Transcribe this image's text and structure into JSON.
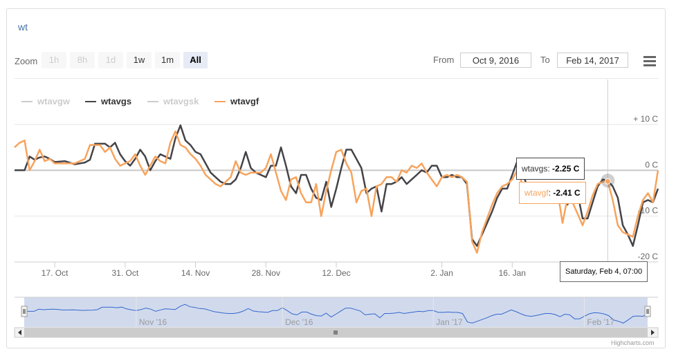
{
  "title": "wt",
  "range_selector": {
    "zoom_label": "Zoom",
    "buttons": [
      {
        "label": "1h",
        "state": "disabled"
      },
      {
        "label": "8h",
        "state": "disabled"
      },
      {
        "label": "1d",
        "state": "disabled"
      },
      {
        "label": "1w",
        "state": "normal"
      },
      {
        "label": "1m",
        "state": "normal"
      },
      {
        "label": "All",
        "state": "active"
      }
    ],
    "from_label": "From",
    "from_value": "Oct 9, 2016",
    "to_label": "To",
    "to_value": "Feb 14, 2017"
  },
  "menu_icon": "hamburger-menu-icon",
  "legend": [
    {
      "name": "wtavgw",
      "color": "#cccccc",
      "visible": false
    },
    {
      "name": "wtavgs",
      "color": "#434348",
      "visible": true
    },
    {
      "name": "wtavgsk",
      "color": "#cccccc",
      "visible": false
    },
    {
      "name": "wtavgf",
      "color": "#f7a35c",
      "visible": true
    }
  ],
  "tooltip": {
    "line1_name": "wtavgs",
    "line1_value": "-2.25 C",
    "line2_name": "wtavgf",
    "line2_value": "-2.41 C",
    "date": "Saturday, Feb 4, 07:00"
  },
  "navigator": {
    "labels": [
      "Nov '16",
      "Dec '16",
      "Jan '17",
      "Feb '17"
    ]
  },
  "credits": "Highcharts.com",
  "chart_data": {
    "type": "line",
    "x_start": "2016-10-09",
    "x_end": "2017-02-14",
    "x_ticks": [
      "17. Oct",
      "31. Oct",
      "14. Nov",
      "28. Nov",
      "12. Dec",
      "2. Jan",
      "16. Jan",
      "Feb"
    ],
    "y_ticks": [
      "+ 10 C",
      "0 C",
      "-10 C",
      "-20 C"
    ],
    "ylim": [
      -20,
      10
    ],
    "grid": true,
    "legend_position": "top-left",
    "series": [
      {
        "name": "wtavgs",
        "color": "#434348",
        "points": [
          [
            "2016-10-09",
            0.0
          ],
          [
            "2016-10-11",
            0.0
          ],
          [
            "2016-10-12",
            3.0
          ],
          [
            "2016-10-13",
            2.3
          ],
          [
            "2016-10-14",
            2.8
          ],
          [
            "2016-10-15",
            3.0
          ],
          [
            "2016-10-16",
            2.5
          ],
          [
            "2016-10-17",
            1.8
          ],
          [
            "2016-10-19",
            2.0
          ],
          [
            "2016-10-21",
            1.3
          ],
          [
            "2016-10-23",
            1.7
          ],
          [
            "2016-10-24",
            2.3
          ],
          [
            "2016-10-25",
            5.8
          ],
          [
            "2016-10-27",
            5.8
          ],
          [
            "2016-10-28",
            5.0
          ],
          [
            "2016-10-29",
            6.0
          ],
          [
            "2016-10-30",
            3.5
          ],
          [
            "2016-10-31",
            2.0
          ],
          [
            "2016-11-01",
            1.0
          ],
          [
            "2016-11-02",
            2.5
          ],
          [
            "2016-11-03",
            4.5
          ],
          [
            "2016-11-04",
            3.0
          ],
          [
            "2016-11-05",
            0.0
          ],
          [
            "2016-11-06",
            2.0
          ],
          [
            "2016-11-07",
            3.5
          ],
          [
            "2016-11-09",
            2.5
          ],
          [
            "2016-11-10",
            7.0
          ],
          [
            "2016-11-11",
            9.8
          ],
          [
            "2016-11-12",
            6.5
          ],
          [
            "2016-11-13",
            5.5
          ],
          [
            "2016-11-14",
            4.0
          ],
          [
            "2016-11-15",
            3.5
          ],
          [
            "2016-11-16",
            1.5
          ],
          [
            "2016-11-17",
            -0.5
          ],
          [
            "2016-11-18",
            -1.5
          ],
          [
            "2016-11-19",
            -2.5
          ],
          [
            "2016-11-20",
            -3.0
          ],
          [
            "2016-11-21",
            -3.0
          ],
          [
            "2016-11-22",
            -2.0
          ],
          [
            "2016-11-23",
            0.5
          ],
          [
            "2016-11-24",
            4.0
          ],
          [
            "2016-11-25",
            0.5
          ],
          [
            "2016-11-26",
            -0.5
          ],
          [
            "2016-11-27",
            -1.0
          ],
          [
            "2016-11-28",
            -1.5
          ],
          [
            "2016-11-29",
            1.0
          ],
          [
            "2016-11-30",
            1.0
          ],
          [
            "2016-12-01",
            5.0
          ],
          [
            "2016-12-02",
            1.0
          ],
          [
            "2016-12-03",
            -3.5
          ],
          [
            "2016-12-04",
            -5.0
          ],
          [
            "2016-12-05",
            -1.0
          ],
          [
            "2016-12-06",
            -1.0
          ],
          [
            "2016-12-07",
            -4.0
          ],
          [
            "2016-12-08",
            -6.0
          ],
          [
            "2016-12-09",
            -6.5
          ],
          [
            "2016-12-10",
            -2.5
          ],
          [
            "2016-12-11",
            -8.0
          ],
          [
            "2016-12-12",
            -4.0
          ],
          [
            "2016-12-13",
            0.5
          ],
          [
            "2016-12-14",
            4.5
          ],
          [
            "2016-12-15",
            4.5
          ],
          [
            "2016-12-16",
            2.5
          ],
          [
            "2016-12-17",
            0.5
          ],
          [
            "2016-12-18",
            -5.0
          ],
          [
            "2016-12-19",
            -4.0
          ],
          [
            "2016-12-20",
            -3.5
          ],
          [
            "2016-12-21",
            -9.0
          ],
          [
            "2016-12-22",
            -3.0
          ],
          [
            "2016-12-23",
            -3.0
          ],
          [
            "2016-12-24",
            -2.5
          ],
          [
            "2016-12-25",
            -1.5
          ],
          [
            "2016-12-26",
            -3.0
          ],
          [
            "2016-12-27",
            -2.0
          ],
          [
            "2016-12-28",
            -1.0
          ],
          [
            "2016-12-29",
            0.0
          ],
          [
            "2016-12-30",
            -0.5
          ],
          [
            "2016-12-31",
            1.0
          ],
          [
            "2017-01-01",
            1.0
          ],
          [
            "2017-01-02",
            -1.5
          ],
          [
            "2017-01-03",
            -1.5
          ],
          [
            "2017-01-04",
            -1.0
          ],
          [
            "2017-01-05",
            -1.5
          ],
          [
            "2017-01-06",
            -1.5
          ],
          [
            "2017-01-07",
            -3.0
          ],
          [
            "2017-01-08",
            -15.0
          ],
          [
            "2017-01-09",
            -16.5
          ],
          [
            "2017-01-10",
            -14.0
          ],
          [
            "2017-01-11",
            -11.5
          ],
          [
            "2017-01-12",
            -9.0
          ],
          [
            "2017-01-13",
            -6.0
          ],
          [
            "2017-01-14",
            -4.0
          ],
          [
            "2017-01-15",
            -4.0
          ],
          [
            "2017-01-16",
            -1.0
          ],
          [
            "2017-01-17",
            2.0
          ],
          [
            "2017-01-18",
            -0.5
          ],
          [
            "2017-01-19",
            -3.5
          ],
          [
            "2017-01-20",
            -6.0
          ],
          [
            "2017-01-21",
            -7.0
          ],
          [
            "2017-01-22",
            -6.0
          ],
          [
            "2017-01-23",
            -4.5
          ],
          [
            "2017-01-24",
            -3.0
          ],
          [
            "2017-01-25",
            -3.0
          ],
          [
            "2017-01-26",
            -4.5
          ],
          [
            "2017-01-27",
            -7.5
          ],
          [
            "2017-01-28",
            -4.0
          ],
          [
            "2017-01-29",
            -5.0
          ],
          [
            "2017-01-30",
            -10.5
          ],
          [
            "2017-01-31",
            -10.5
          ],
          [
            "2017-02-01",
            -7.0
          ],
          [
            "2017-02-02",
            -3.5
          ],
          [
            "2017-02-03",
            -2.0
          ],
          [
            "2017-02-04",
            -2.25
          ],
          [
            "2017-02-05",
            -3.5
          ],
          [
            "2017-02-06",
            -6.0
          ],
          [
            "2017-02-07",
            -12.0
          ],
          [
            "2017-02-08",
            -14.0
          ],
          [
            "2017-02-09",
            -16.5
          ],
          [
            "2017-02-10",
            -12.0
          ],
          [
            "2017-02-11",
            -7.0
          ],
          [
            "2017-02-12",
            -6.5
          ],
          [
            "2017-02-13",
            -7.0
          ],
          [
            "2017-02-14",
            -4.0
          ]
        ]
      },
      {
        "name": "wtavgf",
        "color": "#f7a35c",
        "points": [
          [
            "2016-10-09",
            5.0
          ],
          [
            "2016-10-10",
            6.0
          ],
          [
            "2016-10-11",
            6.5
          ],
          [
            "2016-10-12",
            0.0
          ],
          [
            "2016-10-13",
            2.0
          ],
          [
            "2016-10-14",
            4.5
          ],
          [
            "2016-10-15",
            2.0
          ],
          [
            "2016-10-16",
            2.5
          ],
          [
            "2016-10-17",
            1.5
          ],
          [
            "2016-10-19",
            1.5
          ],
          [
            "2016-10-21",
            1.5
          ],
          [
            "2016-10-23",
            2.5
          ],
          [
            "2016-10-24",
            5.5
          ],
          [
            "2016-10-26",
            5.5
          ],
          [
            "2016-10-27",
            4.0
          ],
          [
            "2016-10-28",
            5.0
          ],
          [
            "2016-10-29",
            2.5
          ],
          [
            "2016-10-30",
            1.0
          ],
          [
            "2016-10-31",
            1.5
          ],
          [
            "2016-11-01",
            2.0
          ],
          [
            "2016-11-02",
            3.5
          ],
          [
            "2016-11-03",
            1.0
          ],
          [
            "2016-11-04",
            -1.0
          ],
          [
            "2016-11-05",
            1.0
          ],
          [
            "2016-11-06",
            3.0
          ],
          [
            "2016-11-07",
            2.0
          ],
          [
            "2016-11-08",
            1.5
          ],
          [
            "2016-11-09",
            6.0
          ],
          [
            "2016-11-10",
            8.5
          ],
          [
            "2016-11-11",
            5.5
          ],
          [
            "2016-11-12",
            5.0
          ],
          [
            "2016-11-13",
            3.5
          ],
          [
            "2016-11-14",
            2.5
          ],
          [
            "2016-11-15",
            1.0
          ],
          [
            "2016-11-16",
            -1.0
          ],
          [
            "2016-11-17",
            -2.0
          ],
          [
            "2016-11-18",
            -3.0
          ],
          [
            "2016-11-19",
            -3.5
          ],
          [
            "2016-11-20",
            -2.5
          ],
          [
            "2016-11-21",
            -1.5
          ],
          [
            "2016-11-22",
            2.0
          ],
          [
            "2016-11-23",
            -0.5
          ],
          [
            "2016-11-24",
            -1.0
          ],
          [
            "2016-11-25",
            -0.5
          ],
          [
            "2016-11-26",
            -0.5
          ],
          [
            "2016-11-27",
            -0.5
          ],
          [
            "2016-11-28",
            0.5
          ],
          [
            "2016-11-29",
            3.5
          ],
          [
            "2016-11-30",
            -0.5
          ],
          [
            "2016-12-01",
            -4.5
          ],
          [
            "2016-12-02",
            -6.5
          ],
          [
            "2016-12-03",
            -2.0
          ],
          [
            "2016-12-04",
            -1.5
          ],
          [
            "2016-12-05",
            -5.0
          ],
          [
            "2016-12-06",
            -7.0
          ],
          [
            "2016-12-07",
            -7.0
          ],
          [
            "2016-12-08",
            -3.0
          ],
          [
            "2016-12-09",
            -10.0
          ],
          [
            "2016-12-10",
            -4.5
          ],
          [
            "2016-12-11",
            0.0
          ],
          [
            "2016-12-12",
            4.0
          ],
          [
            "2016-12-13",
            4.5
          ],
          [
            "2016-12-14",
            1.5
          ],
          [
            "2016-12-15",
            -0.5
          ],
          [
            "2016-12-16",
            -7.0
          ],
          [
            "2016-12-17",
            -4.5
          ],
          [
            "2016-12-18",
            -4.0
          ],
          [
            "2016-12-19",
            -10.0
          ],
          [
            "2016-12-20",
            -3.5
          ],
          [
            "2016-12-21",
            -3.0
          ],
          [
            "2016-12-22",
            -1.5
          ],
          [
            "2016-12-23",
            -1.5
          ],
          [
            "2016-12-24",
            -2.5
          ],
          [
            "2016-12-25",
            0.0
          ],
          [
            "2016-12-26",
            -0.5
          ],
          [
            "2016-12-27",
            1.0
          ],
          [
            "2016-12-28",
            0.5
          ],
          [
            "2016-12-29",
            1.5
          ],
          [
            "2016-12-30",
            -0.5
          ],
          [
            "2016-12-31",
            -2.0
          ],
          [
            "2017-01-01",
            -3.5
          ],
          [
            "2017-01-02",
            -1.5
          ],
          [
            "2017-01-03",
            -1.0
          ],
          [
            "2017-01-04",
            -1.5
          ],
          [
            "2017-01-05",
            -1.0
          ],
          [
            "2017-01-06",
            -1.5
          ],
          [
            "2017-01-07",
            -2.5
          ],
          [
            "2017-01-08",
            -15.5
          ],
          [
            "2017-01-09",
            -18.0
          ],
          [
            "2017-01-10",
            -13.5
          ],
          [
            "2017-01-11",
            -10.5
          ],
          [
            "2017-01-12",
            -7.5
          ],
          [
            "2017-01-13",
            -5.0
          ],
          [
            "2017-01-14",
            -3.5
          ],
          [
            "2017-01-15",
            -3.0
          ],
          [
            "2017-01-16",
            -2.0
          ],
          [
            "2017-01-17",
            0.0
          ],
          [
            "2017-01-18",
            -3.0
          ],
          [
            "2017-01-19",
            -5.5
          ],
          [
            "2017-01-20",
            -6.5
          ],
          [
            "2017-01-21",
            -6.0
          ],
          [
            "2017-01-22",
            -6.5
          ],
          [
            "2017-01-23",
            -6.5
          ],
          [
            "2017-01-24",
            -6.0
          ],
          [
            "2017-01-25",
            -4.5
          ],
          [
            "2017-01-26",
            -11.5
          ],
          [
            "2017-01-27",
            -6.0
          ],
          [
            "2017-01-28",
            -7.0
          ],
          [
            "2017-01-29",
            -9.5
          ],
          [
            "2017-01-30",
            -12.0
          ],
          [
            "2017-01-31",
            -9.0
          ],
          [
            "2017-02-01",
            -5.5
          ],
          [
            "2017-02-02",
            -3.0
          ],
          [
            "2017-02-03",
            -2.5
          ],
          [
            "2017-02-04",
            -2.41
          ],
          [
            "2017-02-05",
            -6.5
          ],
          [
            "2017-02-06",
            -12.0
          ],
          [
            "2017-02-07",
            -13.5
          ],
          [
            "2017-02-08",
            -14.0
          ],
          [
            "2017-02-09",
            -14.5
          ],
          [
            "2017-02-10",
            -10.0
          ],
          [
            "2017-02-11",
            -6.5
          ],
          [
            "2017-02-12",
            -5.0
          ],
          [
            "2017-02-13",
            -7.0
          ],
          [
            "2017-02-14",
            0.0
          ]
        ]
      }
    ]
  }
}
